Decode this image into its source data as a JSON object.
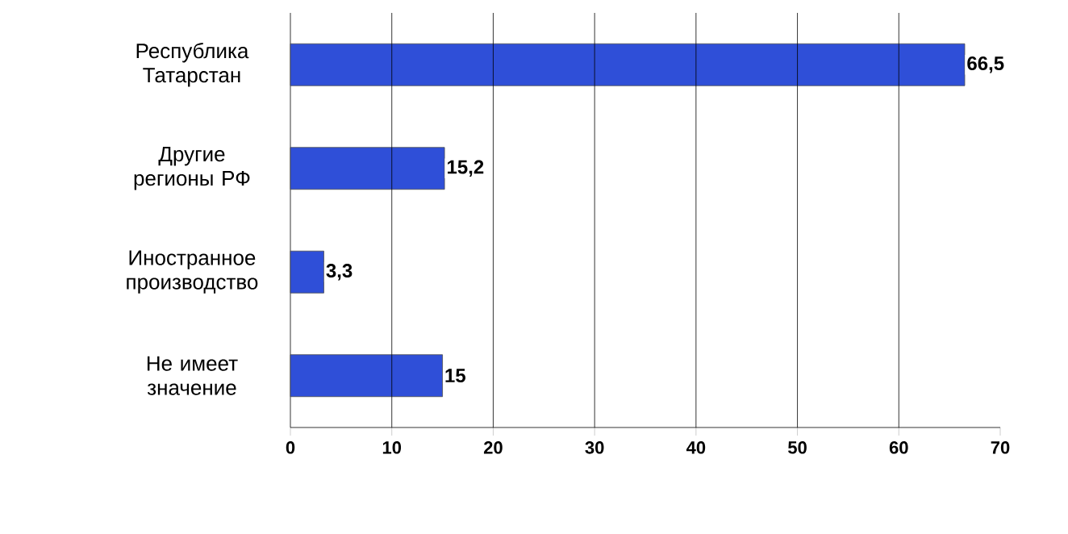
{
  "chart_data": {
    "type": "bar",
    "orientation": "horizontal",
    "categories": [
      "Республика Татарстан",
      "Другие регионы РФ",
      "Иностранное производство",
      "Не имеет значение"
    ],
    "values": [
      66.5,
      15.2,
      3.3,
      15
    ],
    "value_labels": [
      "66,5",
      "15,2",
      "3,3",
      "15"
    ],
    "color": "#2f4fd8",
    "xlim": [
      0,
      70
    ],
    "xticks": [
      0,
      10,
      20,
      30,
      40,
      50,
      60,
      70
    ],
    "grid": "x"
  }
}
